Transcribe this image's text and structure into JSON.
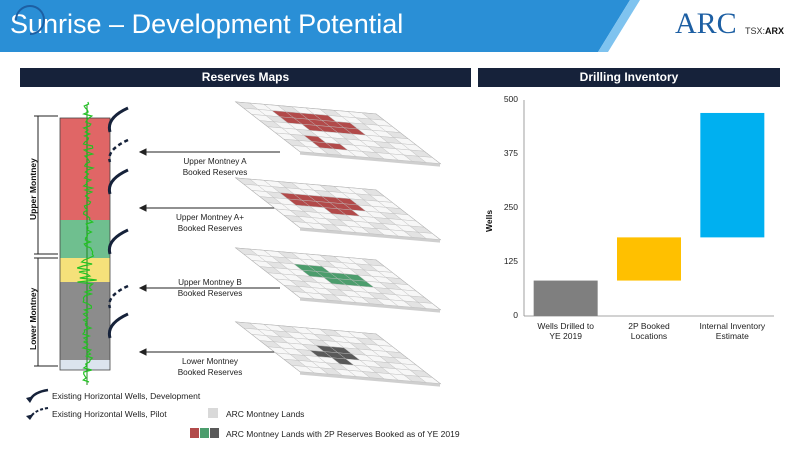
{
  "header": {
    "title": "Sunrise – Development Potential",
    "logo_text": "ARC",
    "ticker_prefix": "TSX:",
    "ticker_symbol": "ARX",
    "banner_color": "#2a8fd6"
  },
  "reserves_maps": {
    "heading": "Reserves Maps",
    "zones": [
      "Upper Montney",
      "Lower Montney"
    ],
    "layers": [
      {
        "label_line1": "Upper Montney A",
        "label_line2": "Booked Reserves",
        "color": "#b24a4a"
      },
      {
        "label_line1": "Upper Montney A+",
        "label_line2": "Booked Reserves",
        "color": "#b24a4a"
      },
      {
        "label_line1": "Upper Montney B",
        "label_line2": "Booked Reserves",
        "color": "#4c9d6d"
      },
      {
        "label_line1": "Lower Montney",
        "label_line2": "Booked Reserves",
        "color": "#595959"
      }
    ],
    "log_colors": {
      "upper_a": "#e06666",
      "upper_b": "#6fbf8f",
      "yellow": "#f5e17a",
      "lower": "#8c8c8c"
    }
  },
  "legend": {
    "dev_wells": "Existing Horizontal Wells, Development",
    "pilot_wells": "Existing Horizontal Wells, Pilot",
    "lands": "ARC Montney Lands",
    "booked_lands": "ARC Montney Lands with 2P Reserves Booked as of YE 2019"
  },
  "drilling_inventory": {
    "heading": "Drilling Inventory",
    "ylabel": "Wells"
  },
  "chart_data": {
    "type": "bar",
    "subtype": "waterfall",
    "categories": [
      "Wells Drilled to YE 2019",
      "2P Booked Locations",
      "Internal Inventory Estimate"
    ],
    "category_lines": [
      [
        "Wells Drilled to",
        "YE 2019"
      ],
      [
        "2P Booked",
        "Locations"
      ],
      [
        "Internal Inventory",
        "Estimate"
      ]
    ],
    "bars": [
      {
        "start": 0,
        "end": 82,
        "color": "#7f7f7f"
      },
      {
        "start": 82,
        "end": 182,
        "color": "#ffc000"
      },
      {
        "start": 182,
        "end": 470,
        "color": "#00b0f0"
      }
    ],
    "ylim": [
      0,
      500
    ],
    "yticks": [
      "0",
      "125",
      "250",
      "375",
      "500"
    ],
    "xlabel": "",
    "ylabel": "Wells",
    "grid": false
  }
}
